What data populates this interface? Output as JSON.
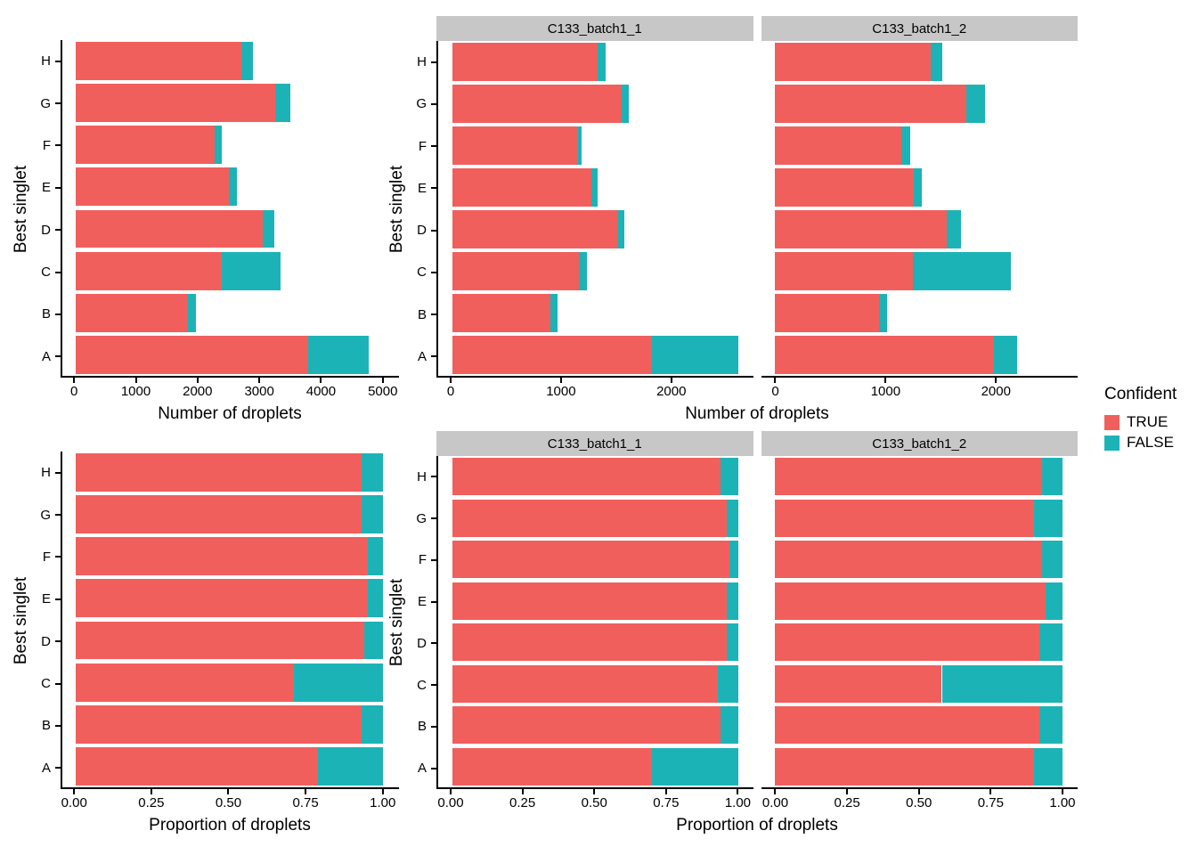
{
  "figure": {
    "background": "#FFFFFF",
    "palette": {
      "true_color": "#F15F5D",
      "false_color": "#1CB3B7",
      "strip_bg": "#C7C7C7",
      "axis_color": "#000000",
      "text_color": "#000000"
    },
    "legend": {
      "title": "Confident",
      "items": [
        {
          "label": "TRUE",
          "color": "#F15F5D"
        },
        {
          "label": "FALSE",
          "color": "#1CB3B7"
        }
      ]
    }
  },
  "chart_data": [
    {
      "id": "counts-overall",
      "type": "bar",
      "orientation": "horizontal",
      "stacked": true,
      "xlabel": "Number of droplets",
      "ylabel": "Best singlet",
      "categories": [
        "A",
        "B",
        "C",
        "D",
        "E",
        "F",
        "G",
        "H"
      ],
      "category_axis_note": "A at bottom, H at top",
      "xticks": [
        0,
        1000,
        2000,
        3000,
        4000,
        5000
      ],
      "xtick_labels": [
        "0",
        "1000",
        "2000",
        "3000",
        "4000",
        "5000"
      ],
      "xlim": [
        0,
        5250
      ],
      "grid": false,
      "series": [
        {
          "name": "TRUE",
          "values": [
            3780,
            1820,
            2380,
            3050,
            2500,
            2260,
            3245,
            2695
          ]
        },
        {
          "name": "FALSE",
          "values": [
            990,
            130,
            955,
            180,
            120,
            120,
            250,
            195
          ]
        }
      ]
    },
    {
      "id": "counts-by-sample",
      "type": "bar",
      "orientation": "horizontal",
      "stacked": true,
      "xlabel": "Number of droplets",
      "ylabel": "Best singlet",
      "categories": [
        "A",
        "B",
        "C",
        "D",
        "E",
        "F",
        "G",
        "H"
      ],
      "category_axis_note": "A at bottom, H at top",
      "xticks": [
        0,
        1000,
        2000
      ],
      "xtick_labels": [
        "0",
        "1000",
        "2000"
      ],
      "xlim": [
        0,
        2730
      ],
      "grid": false,
      "facets": [
        {
          "name": "C133_batch1_1",
          "series": [
            {
              "name": "TRUE",
              "values": [
                1820,
                890,
                1155,
                1510,
                1270,
                1145,
                1540,
                1320
              ]
            },
            {
              "name": "FALSE",
              "values": [
                785,
                65,
                75,
                60,
                50,
                35,
                70,
                80
              ]
            }
          ]
        },
        {
          "name": "C133_batch1_2",
          "series": [
            {
              "name": "TRUE",
              "values": [
                1985,
                940,
                1245,
                1555,
                1255,
                1140,
                1730,
                1410
              ]
            },
            {
              "name": "FALSE",
              "values": [
                210,
                75,
                890,
                130,
                70,
                80,
                170,
                100
              ]
            }
          ]
        }
      ]
    },
    {
      "id": "proportion-overall",
      "type": "bar",
      "orientation": "horizontal",
      "stacked": true,
      "xlabel": "Proportion of droplets",
      "ylabel": "Best singlet",
      "categories": [
        "A",
        "B",
        "C",
        "D",
        "E",
        "F",
        "G",
        "H"
      ],
      "category_axis_note": "A at bottom, H at top",
      "xticks": [
        0,
        0.25,
        0.5,
        0.75,
        1.0
      ],
      "xtick_labels": [
        "0.00",
        "0.25",
        "0.50",
        "0.75",
        "1.00"
      ],
      "xlim": [
        0,
        1.05
      ],
      "grid": false,
      "series": [
        {
          "name": "TRUE",
          "values": [
            0.79,
            0.93,
            0.71,
            0.94,
            0.95,
            0.95,
            0.93,
            0.93
          ]
        },
        {
          "name": "FALSE",
          "values": [
            0.21,
            0.07,
            0.29,
            0.06,
            0.05,
            0.05,
            0.07,
            0.07
          ]
        }
      ]
    },
    {
      "id": "proportion-by-sample",
      "type": "bar",
      "orientation": "horizontal",
      "stacked": true,
      "xlabel": "Proportion of droplets",
      "ylabel": "Best singlet",
      "categories": [
        "A",
        "B",
        "C",
        "D",
        "E",
        "F",
        "G",
        "H"
      ],
      "category_axis_note": "A at bottom, H at top",
      "xticks": [
        0,
        0.25,
        0.5,
        0.75,
        1.0
      ],
      "xtick_labels": [
        "0.00",
        "0.25",
        "0.50",
        "0.75",
        "1.00"
      ],
      "xlim": [
        0,
        1.05
      ],
      "grid": false,
      "facets": [
        {
          "name": "C133_batch1_1",
          "series": [
            {
              "name": "TRUE",
              "values": [
                0.7,
                0.94,
                0.93,
                0.96,
                0.96,
                0.97,
                0.96,
                0.94
              ]
            },
            {
              "name": "FALSE",
              "values": [
                0.3,
                0.06,
                0.07,
                0.04,
                0.04,
                0.03,
                0.04,
                0.06
              ]
            }
          ]
        },
        {
          "name": "C133_batch1_2",
          "series": [
            {
              "name": "TRUE",
              "values": [
                0.9,
                0.92,
                0.58,
                0.92,
                0.94,
                0.93,
                0.9,
                0.93
              ]
            },
            {
              "name": "FALSE",
              "values": [
                0.1,
                0.08,
                0.42,
                0.08,
                0.06,
                0.07,
                0.1,
                0.07
              ]
            }
          ]
        }
      ]
    }
  ]
}
